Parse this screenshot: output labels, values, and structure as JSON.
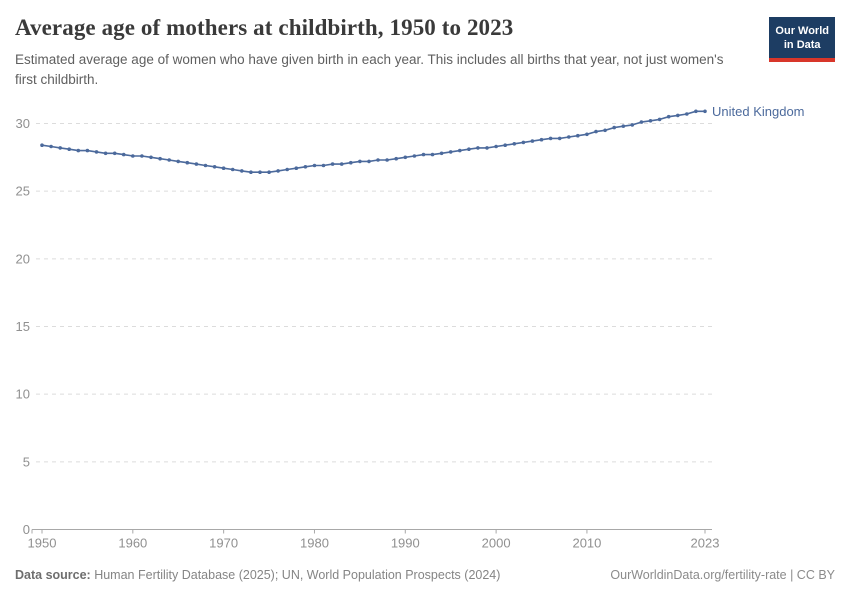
{
  "header": {
    "title": "Average age of mothers at childbirth, 1950 to 2023",
    "subtitle": "Estimated average age of women who have given birth in each year. This includes all births that year, not just women's first childbirth.",
    "logo": {
      "line1": "Our World",
      "line2": "in Data"
    }
  },
  "chart_data": {
    "type": "line",
    "title": "Average age of mothers at childbirth, 1950 to 2023",
    "xlabel": "",
    "ylabel": "",
    "ylim": [
      0,
      31
    ],
    "y_ticks": [
      0,
      5,
      10,
      15,
      20,
      25,
      30
    ],
    "x_ticks": [
      1950,
      1960,
      1970,
      1980,
      1990,
      2000,
      2010,
      2023
    ],
    "grid": "horizontal-dashed",
    "legend_position": "end-of-line-label",
    "line_color": "#4C6A9C",
    "x": [
      1950,
      1951,
      1952,
      1953,
      1954,
      1955,
      1956,
      1957,
      1958,
      1959,
      1960,
      1961,
      1962,
      1963,
      1964,
      1965,
      1966,
      1967,
      1968,
      1969,
      1970,
      1971,
      1972,
      1973,
      1974,
      1975,
      1976,
      1977,
      1978,
      1979,
      1980,
      1981,
      1982,
      1983,
      1984,
      1985,
      1986,
      1987,
      1988,
      1989,
      1990,
      1991,
      1992,
      1993,
      1994,
      1995,
      1996,
      1997,
      1998,
      1999,
      2000,
      2001,
      2002,
      2003,
      2004,
      2005,
      2006,
      2007,
      2008,
      2009,
      2010,
      2011,
      2012,
      2013,
      2014,
      2015,
      2016,
      2017,
      2018,
      2019,
      2020,
      2021,
      2022,
      2023
    ],
    "series": [
      {
        "name": "United Kingdom",
        "values": [
          28.4,
          28.3,
          28.2,
          28.1,
          28.0,
          28.0,
          27.9,
          27.8,
          27.8,
          27.7,
          27.6,
          27.6,
          27.5,
          27.4,
          27.3,
          27.2,
          27.1,
          27.0,
          26.9,
          26.8,
          26.7,
          26.6,
          26.5,
          26.4,
          26.4,
          26.4,
          26.5,
          26.6,
          26.7,
          26.8,
          26.9,
          26.9,
          27.0,
          27.0,
          27.1,
          27.2,
          27.2,
          27.3,
          27.3,
          27.4,
          27.5,
          27.6,
          27.7,
          27.7,
          27.8,
          27.9,
          28.0,
          28.1,
          28.2,
          28.2,
          28.3,
          28.4,
          28.5,
          28.6,
          28.7,
          28.8,
          28.9,
          28.9,
          29.0,
          29.1,
          29.2,
          29.4,
          29.5,
          29.7,
          29.8,
          29.9,
          30.1,
          30.2,
          30.3,
          30.5,
          30.6,
          30.7,
          30.9,
          30.9
        ]
      }
    ]
  },
  "footer": {
    "datasource_label": "Data source:",
    "datasource_text": " Human Fertility Database (2025); UN, World Population Prospects (2024)",
    "citation": "OurWorldinData.org/fertility-rate | CC BY"
  },
  "colors": {
    "line": "#4C6A9C",
    "gridline": "#dcdcdc",
    "axis": "#a8a8a8",
    "tick_label": "#909090",
    "logo_bg": "#1d3d63",
    "logo_red": "#d8362a",
    "title": "#3a3a3a",
    "subtitle": "#5f5f5f"
  }
}
